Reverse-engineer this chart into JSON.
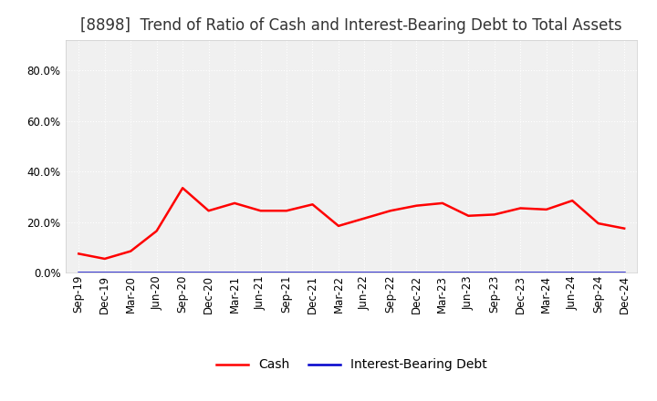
{
  "title": "[8898]  Trend of Ratio of Cash and Interest-Bearing Debt to Total Assets",
  "x_labels": [
    "Sep-19",
    "Dec-19",
    "Mar-20",
    "Jun-20",
    "Sep-20",
    "Dec-20",
    "Mar-21",
    "Jun-21",
    "Sep-21",
    "Dec-21",
    "Mar-22",
    "Jun-22",
    "Sep-22",
    "Dec-22",
    "Mar-23",
    "Jun-23",
    "Sep-23",
    "Dec-23",
    "Mar-24",
    "Jun-24",
    "Sep-24",
    "Dec-24"
  ],
  "cash": [
    0.075,
    0.055,
    0.085,
    0.165,
    0.335,
    0.245,
    0.275,
    0.245,
    0.245,
    0.27,
    0.185,
    0.215,
    0.245,
    0.265,
    0.275,
    0.225,
    0.23,
    0.255,
    0.25,
    0.285,
    0.195,
    0.175
  ],
  "interest_bearing_debt": [
    0.002,
    0.002,
    0.002,
    0.002,
    0.002,
    0.002,
    0.002,
    0.002,
    0.002,
    0.002,
    0.002,
    0.002,
    0.002,
    0.002,
    0.002,
    0.002,
    0.002,
    0.002,
    0.002,
    0.002,
    0.002,
    0.002
  ],
  "cash_color": "#ff0000",
  "debt_color": "#0000cc",
  "plot_bg_color": "#f0f0f0",
  "fig_bg_color": "#ffffff",
  "grid_color": "#ffffff",
  "ylim": [
    0.0,
    0.92
  ],
  "yticks": [
    0.0,
    0.2,
    0.4,
    0.6,
    0.8
  ],
  "legend_labels": [
    "Cash",
    "Interest-Bearing Debt"
  ],
  "title_fontsize": 12,
  "axis_fontsize": 8.5,
  "legend_fontsize": 10,
  "line_width": 1.8
}
